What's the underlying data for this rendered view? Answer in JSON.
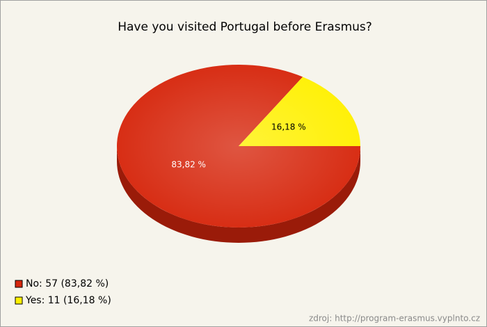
{
  "chart_data": {
    "type": "pie",
    "title": "Have you visited Portugal before Erasmus?",
    "categories": [
      "No: 57 (83,82 %)",
      "Yes: 11 (16,18 %)"
    ],
    "values": [
      83.82,
      16.18
    ],
    "value_labels": [
      "83,82 %",
      "16,18 %"
    ],
    "colors": [
      "#d6260c",
      "#fff000"
    ],
    "label_colors": [
      "#ffffff",
      "#000000"
    ],
    "legend": "bottom-left",
    "source": "zdroj: http://program-erasmus.vyplnto.cz"
  }
}
